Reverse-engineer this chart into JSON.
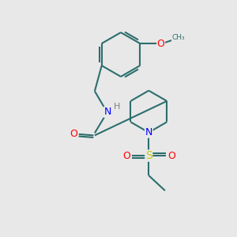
{
  "background_color": "#e8e8e8",
  "bond_color": "#2d6e6e",
  "atom_colors": {
    "N": "#0000ff",
    "O": "#ff0000",
    "S": "#cccc00",
    "H": "#808080"
  },
  "bond_width": 1.5
}
